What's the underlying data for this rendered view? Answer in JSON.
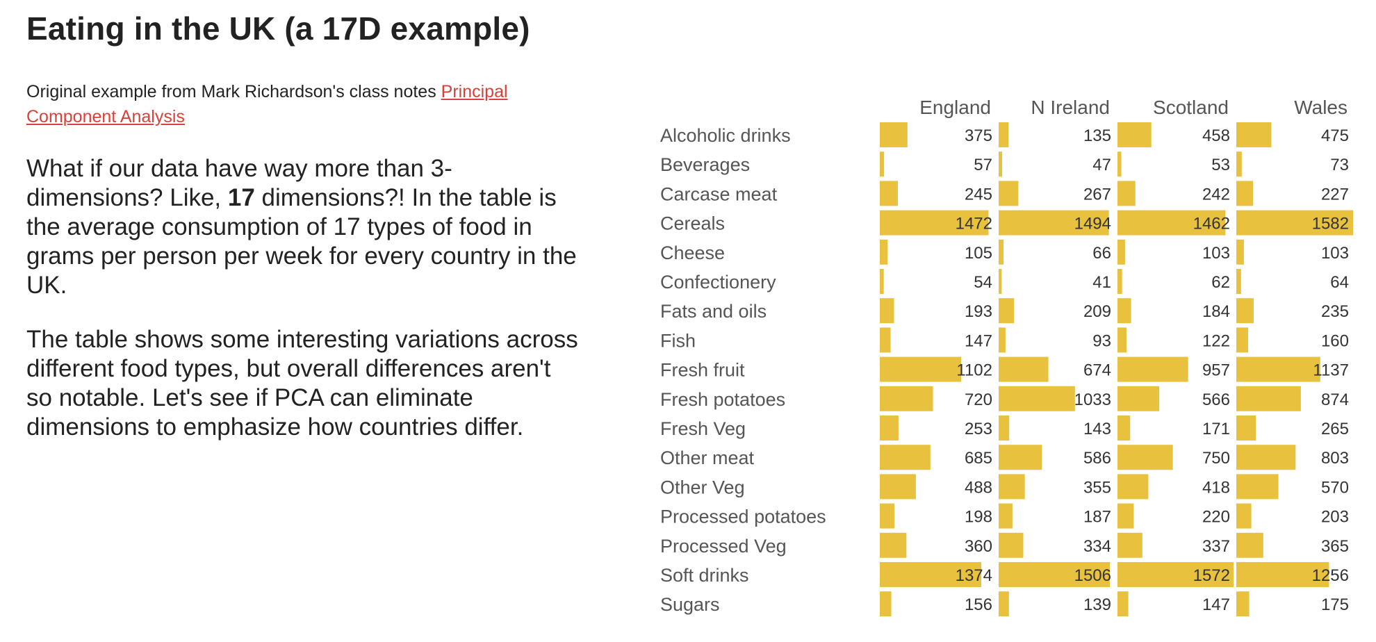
{
  "page": {
    "title": "Eating in the UK (a 17D example)",
    "source_prefix": "Original example from Mark Richardson's class notes",
    "source_link": "Principal Component Analysis",
    "p1_a": "What if our data have way more than 3-dimensions? Like, ",
    "p1_bold": "17",
    "p1_b": " dimensions?! In the table is the average consumption of 17 types of food in grams per person per week for every country in the UK.",
    "p2": "The table shows some interesting variations across different food types, but overall differences aren't so notable. Let's see if PCA can eliminate dimensions to emphasize how countries differ."
  },
  "colors": {
    "bar": "#e8c13f",
    "label": "#555555",
    "value": "#333333",
    "link": "#d9413a"
  },
  "chart_data": {
    "type": "table",
    "bar_max": 1600,
    "columns": [
      "England",
      "N Ireland",
      "Scotland",
      "Wales"
    ],
    "rows": [
      {
        "food": "Alcoholic drinks",
        "values": [
          375,
          135,
          458,
          475
        ]
      },
      {
        "food": "Beverages",
        "values": [
          57,
          47,
          53,
          73
        ]
      },
      {
        "food": "Carcase meat",
        "values": [
          245,
          267,
          242,
          227
        ]
      },
      {
        "food": "Cereals",
        "values": [
          1472,
          1494,
          1462,
          1582
        ]
      },
      {
        "food": "Cheese",
        "values": [
          105,
          66,
          103,
          103
        ]
      },
      {
        "food": "Confectionery",
        "values": [
          54,
          41,
          62,
          64
        ]
      },
      {
        "food": "Fats and oils",
        "values": [
          193,
          209,
          184,
          235
        ]
      },
      {
        "food": "Fish",
        "values": [
          147,
          93,
          122,
          160
        ]
      },
      {
        "food": "Fresh fruit",
        "values": [
          1102,
          674,
          957,
          1137
        ]
      },
      {
        "food": "Fresh potatoes",
        "values": [
          720,
          1033,
          566,
          874
        ]
      },
      {
        "food": "Fresh Veg",
        "values": [
          253,
          143,
          171,
          265
        ]
      },
      {
        "food": "Other meat",
        "values": [
          685,
          586,
          750,
          803
        ]
      },
      {
        "food": "Other Veg",
        "values": [
          488,
          355,
          418,
          570
        ]
      },
      {
        "food": "Processed potatoes",
        "values": [
          198,
          187,
          220,
          203
        ]
      },
      {
        "food": "Processed Veg",
        "values": [
          360,
          334,
          337,
          365
        ]
      },
      {
        "food": "Soft drinks",
        "values": [
          1374,
          1506,
          1572,
          1256
        ]
      },
      {
        "food": "Sugars",
        "values": [
          156,
          139,
          147,
          175
        ]
      }
    ]
  }
}
